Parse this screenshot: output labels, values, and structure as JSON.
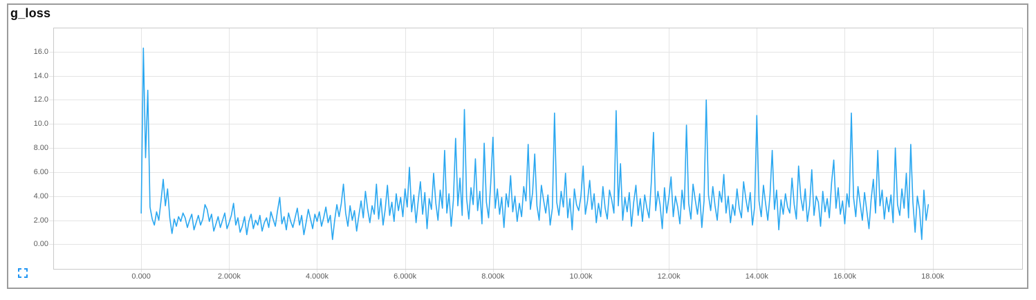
{
  "card": {
    "title": "g_loss",
    "colors": {
      "line": "#2aa7f0",
      "fullscreen_icon": "#2196f3"
    }
  },
  "chart_data": {
    "type": "line",
    "title": "g_loss",
    "grid": true,
    "legend": "none",
    "xlim": [
      -2000,
      20050
    ],
    "ylim": [
      -2.1,
      18.0
    ],
    "x_ticks": [
      {
        "label": "0.000",
        "value": 0
      },
      {
        "label": "2.000k",
        "value": 2000
      },
      {
        "label": "4.000k",
        "value": 4000
      },
      {
        "label": "6.000k",
        "value": 6000
      },
      {
        "label": "8.000k",
        "value": 8000
      },
      {
        "label": "10.00k",
        "value": 10000
      },
      {
        "label": "12.00k",
        "value": 12000
      },
      {
        "label": "14.00k",
        "value": 14000
      },
      {
        "label": "16.00k",
        "value": 16000
      },
      {
        "label": "18.00k",
        "value": 18000
      }
    ],
    "y_ticks": [
      {
        "label": "0.00",
        "value": 0
      },
      {
        "label": "2.00",
        "value": 2
      },
      {
        "label": "4.00",
        "value": 4
      },
      {
        "label": "6.00",
        "value": 6
      },
      {
        "label": "8.00",
        "value": 8
      },
      {
        "label": "10.0",
        "value": 10
      },
      {
        "label": "12.0",
        "value": 12
      },
      {
        "label": "14.0",
        "value": 14
      },
      {
        "label": "16.0",
        "value": 16
      }
    ],
    "series": [
      {
        "name": "g_loss",
        "color": "#2aa7f0",
        "step_start": 0,
        "step_increment": 50,
        "values": [
          2.6,
          16.3,
          7.2,
          12.8,
          3.1,
          2.1,
          1.6,
          2.7,
          2.0,
          3.6,
          5.4,
          3.2,
          4.6,
          2.2,
          0.9,
          2.1,
          1.5,
          2.3,
          1.9,
          2.6,
          2.2,
          1.4,
          2.0,
          2.5,
          1.2,
          1.8,
          2.4,
          1.6,
          2.1,
          3.3,
          2.9,
          1.9,
          2.5,
          1.1,
          1.7,
          2.3,
          1.4,
          2.0,
          2.6,
          1.3,
          1.8,
          2.4,
          3.4,
          1.6,
          2.2,
          1.0,
          1.5,
          2.3,
          0.8,
          1.9,
          2.5,
          1.3,
          2.0,
          1.6,
          2.4,
          1.1,
          1.8,
          2.2,
          1.4,
          2.7,
          2.1,
          1.5,
          2.8,
          3.9,
          1.7,
          2.3,
          1.2,
          2.6,
          1.9,
          1.4,
          2.2,
          3.0,
          1.6,
          2.4,
          0.8,
          1.8,
          2.9,
          2.1,
          1.3,
          2.5,
          1.9,
          2.7,
          1.5,
          2.2,
          3.1,
          1.8,
          2.4,
          0.4,
          2.0,
          3.3,
          2.3,
          3.4,
          5.0,
          2.6,
          1.5,
          3.2,
          2.0,
          2.8,
          1.1,
          2.4,
          3.6,
          2.2,
          4.4,
          2.9,
          1.8,
          3.2,
          2.5,
          5.0,
          2.1,
          3.8,
          1.6,
          2.9,
          4.9,
          2.4,
          3.5,
          1.9,
          4.2,
          2.8,
          3.9,
          2.3,
          4.6,
          3.1,
          6.4,
          2.7,
          4.1,
          1.8,
          3.6,
          5.2,
          2.5,
          4.3,
          1.3,
          3.8,
          2.9,
          5.9,
          3.4,
          2.0,
          4.5,
          3.0,
          7.8,
          2.6,
          4.2,
          1.5,
          3.7,
          8.8,
          3.2,
          5.5,
          2.4,
          11.2,
          3.8,
          2.1,
          4.7,
          3.3,
          7.1,
          2.8,
          4.4,
          1.7,
          8.4,
          3.5,
          2.2,
          5.1,
          8.9,
          3.0,
          4.6,
          2.5,
          3.9,
          1.4,
          4.2,
          3.1,
          5.7,
          2.7,
          4.0,
          1.9,
          3.4,
          2.3,
          4.8,
          3.6,
          8.3,
          2.9,
          4.3,
          7.5,
          3.2,
          2.0,
          4.9,
          3.7,
          2.6,
          4.1,
          1.6,
          3.0,
          10.9,
          3.5,
          2.4,
          4.4,
          3.1,
          5.9,
          2.2,
          3.8,
          1.2,
          4.6,
          3.3,
          2.8,
          4.0,
          6.5,
          2.5,
          3.6,
          5.3,
          2.9,
          4.2,
          1.8,
          3.4,
          2.3,
          4.8,
          3.0,
          2.1,
          4.5,
          3.7,
          2.6,
          11.1,
          3.2,
          6.7,
          2.0,
          3.9,
          2.7,
          4.3,
          1.5,
          3.5,
          4.9,
          2.4,
          3.8,
          1.9,
          4.1,
          3.0,
          2.2,
          5.1,
          9.3,
          2.8,
          4.4,
          3.3,
          1.3,
          4.7,
          2.6,
          3.9,
          5.6,
          2.3,
          4.0,
          3.1,
          1.7,
          4.5,
          2.9,
          9.9,
          3.4,
          2.1,
          5.0,
          3.7,
          2.5,
          4.2,
          1.4,
          3.6,
          12.0,
          4.1,
          2.8,
          4.8,
          3.2,
          2.0,
          4.4,
          3.5,
          5.8,
          2.6,
          4.0,
          1.8,
          3.3,
          2.4,
          4.6,
          3.0,
          2.2,
          5.2,
          3.8,
          2.7,
          4.3,
          1.6,
          3.1,
          10.7,
          3.6,
          2.3,
          4.9,
          3.4,
          2.0,
          4.1,
          7.8,
          2.9,
          4.5,
          1.2,
          3.7,
          2.5,
          4.2,
          3.1,
          2.6,
          5.5,
          3.3,
          2.1,
          6.5,
          3.9,
          2.8,
          4.6,
          1.9,
          3.2,
          6.2,
          2.4,
          4.0,
          3.5,
          1.5,
          4.4,
          2.7,
          3.8,
          2.2,
          5.1,
          7.0,
          3.0,
          4.7,
          2.5,
          3.6,
          1.7,
          4.2,
          3.1,
          10.9,
          3.9,
          2.3,
          4.8,
          3.4,
          2.0,
          4.3,
          2.8,
          1.3,
          3.7,
          5.4,
          2.6,
          7.8,
          3.2,
          4.5,
          2.1,
          3.9,
          2.7,
          4.1,
          1.8,
          8.0,
          3.3,
          2.4,
          4.6,
          3.0,
          5.9,
          2.2,
          8.3,
          3.5,
          1.0,
          4.0,
          2.9,
          0.4,
          4.5,
          2.0,
          3.3
        ]
      }
    ]
  }
}
